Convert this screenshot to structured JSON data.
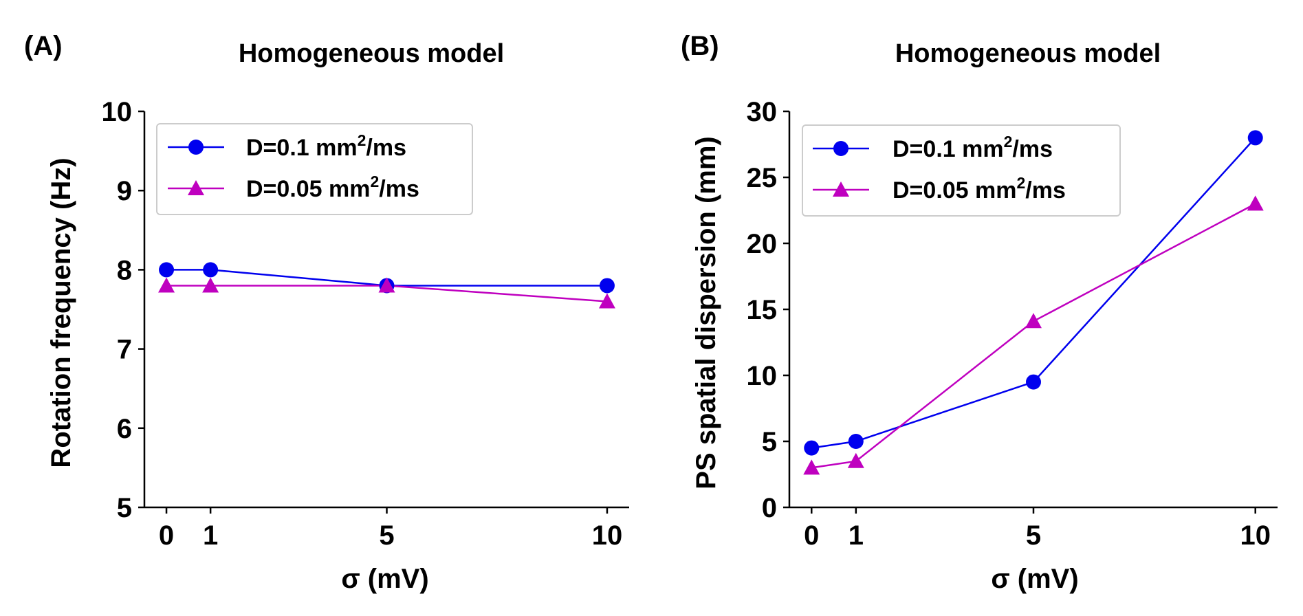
{
  "chart_data": [
    {
      "panel": "(A)",
      "type": "line",
      "title": "Homogeneous model",
      "xlabel": "σ (mV)",
      "ylabel": "Rotation frequency (Hz)",
      "x": [
        0,
        1,
        5,
        10
      ],
      "x_ticks": [
        "0",
        "1",
        "5",
        "10"
      ],
      "xlim": [
        -0.5,
        10.5
      ],
      "ylim": [
        5,
        10
      ],
      "y_ticks": [
        "5",
        "6",
        "7",
        "8",
        "9",
        "10"
      ],
      "legend_loc": "top-left",
      "series": [
        {
          "name_prefix": "D=0.1 mm",
          "name_sup": "2",
          "name_suffix": "/ms",
          "color": "#0000ee",
          "marker": "circle",
          "values": [
            8.0,
            8.0,
            7.8,
            7.8
          ]
        },
        {
          "name_prefix": "D=0.05 mm",
          "name_sup": "2",
          "name_suffix": "/ms",
          "color": "#bf00bf",
          "marker": "triangle",
          "values": [
            7.8,
            7.8,
            7.8,
            7.6
          ]
        }
      ]
    },
    {
      "panel": "(B)",
      "type": "line",
      "title": "Homogeneous model",
      "xlabel": "σ (mV)",
      "ylabel": "PS spatial dispersion (mm)",
      "x": [
        0,
        1,
        5,
        10
      ],
      "x_ticks": [
        "0",
        "1",
        "5",
        "10"
      ],
      "xlim": [
        -0.5,
        10.5
      ],
      "ylim": [
        0,
        30
      ],
      "y_ticks": [
        "0",
        "5",
        "10",
        "15",
        "20",
        "25",
        "30"
      ],
      "legend_loc": "top-left",
      "series": [
        {
          "name_prefix": "D=0.1 mm",
          "name_sup": "2",
          "name_suffix": "/ms",
          "color": "#0000ee",
          "marker": "circle",
          "values": [
            4.5,
            5.0,
            9.5,
            28.0
          ]
        },
        {
          "name_prefix": "D=0.05 mm",
          "name_sup": "2",
          "name_suffix": "/ms",
          "color": "#bf00bf",
          "marker": "triangle",
          "values": [
            3.0,
            3.5,
            14.1,
            23.0
          ]
        }
      ]
    }
  ]
}
